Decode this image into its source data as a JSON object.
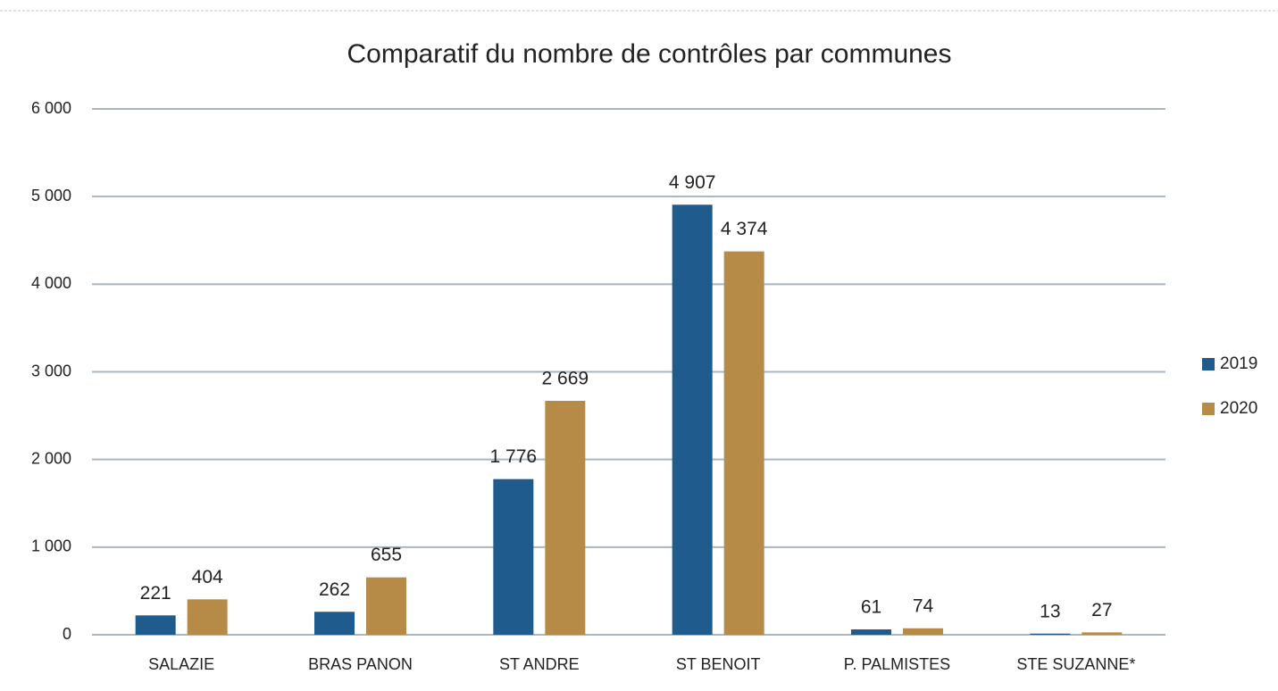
{
  "chart_data": {
    "type": "bar",
    "title": "Comparatif du nombre de contrôles par communes",
    "categories": [
      "SALAZIE",
      "BRAS PANON",
      "ST ANDRE",
      "ST BENOIT",
      "P. PALMISTES",
      "STE SUZANNE*"
    ],
    "series": [
      {
        "name": "2019",
        "color": "#1f5b8c",
        "values": [
          221,
          262,
          1776,
          4907,
          61,
          13
        ],
        "value_labels": [
          "221",
          "262",
          "1 776",
          "4 907",
          "61",
          "13"
        ]
      },
      {
        "name": "2020",
        "color": "#b68b47",
        "values": [
          404,
          655,
          2669,
          4374,
          74,
          27
        ],
        "value_labels": [
          "404",
          "655",
          "2 669",
          "4 374",
          "74",
          "27"
        ]
      }
    ],
    "ylim": [
      0,
      6000
    ],
    "yticks": [
      0,
      {
        "value": 1000,
        "label": "1 000"
      },
      {
        "value": 2000,
        "label": "2 000"
      },
      {
        "value": 3000,
        "label": "3 000"
      },
      {
        "value": 4000,
        "label": "4 000"
      },
      {
        "value": 5000,
        "label": "5 000"
      },
      {
        "value": 6000,
        "label": "6 000"
      }
    ],
    "grid": true,
    "legend": "right"
  }
}
